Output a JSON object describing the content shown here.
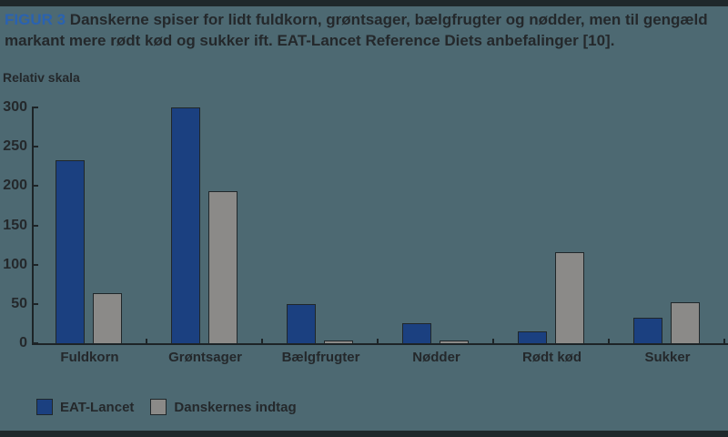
{
  "header": {
    "figure_label": "FIGUR 3",
    "title": "Danskerne spiser for lidt fuldkorn, grøntsager, bælgfrugter og nødder, men til gengæld markant mere rødt kød og sukker ift. EAT-Lancet Reference Diets anbefalinger [10]."
  },
  "colors": {
    "background": "#4d6972",
    "top_bottom_strips": "#1f282b",
    "axis": "#1d2427",
    "text": "#24282b",
    "figure_label_blue": "#2a62b0",
    "eat_lancet_blue": "#1b4080",
    "danskernes_gray": "#8b8a88"
  },
  "chart_data": {
    "type": "bar",
    "title": "FIGUR 3 Danskerne spiser for lidt fuldkorn, grøntsager, bælgfrugter og nødder, men til gengæld markant mere rødt kød og sukker ift. EAT-Lancet Reference Diets anbefalinger [10].",
    "ylabel": "Relativ skala",
    "xlabel": "",
    "categories": [
      "Fuldkorn",
      "Grøntsager",
      "Bælgfrugter",
      "Nødder",
      "Rødt kød",
      "Sukker"
    ],
    "series": [
      {
        "name": "EAT-Lancet",
        "color": "#1b4080",
        "values": [
          233,
          300,
          50,
          26,
          15,
          32
        ]
      },
      {
        "name": "Danskernes indtag",
        "color": "#8b8a88",
        "values": [
          64,
          194,
          3,
          4,
          116,
          52
        ]
      }
    ],
    "ylim": [
      0,
      300
    ],
    "yticks": [
      0,
      50,
      100,
      150,
      200,
      250,
      300
    ],
    "grid": false,
    "legend_position": "bottom-left"
  }
}
